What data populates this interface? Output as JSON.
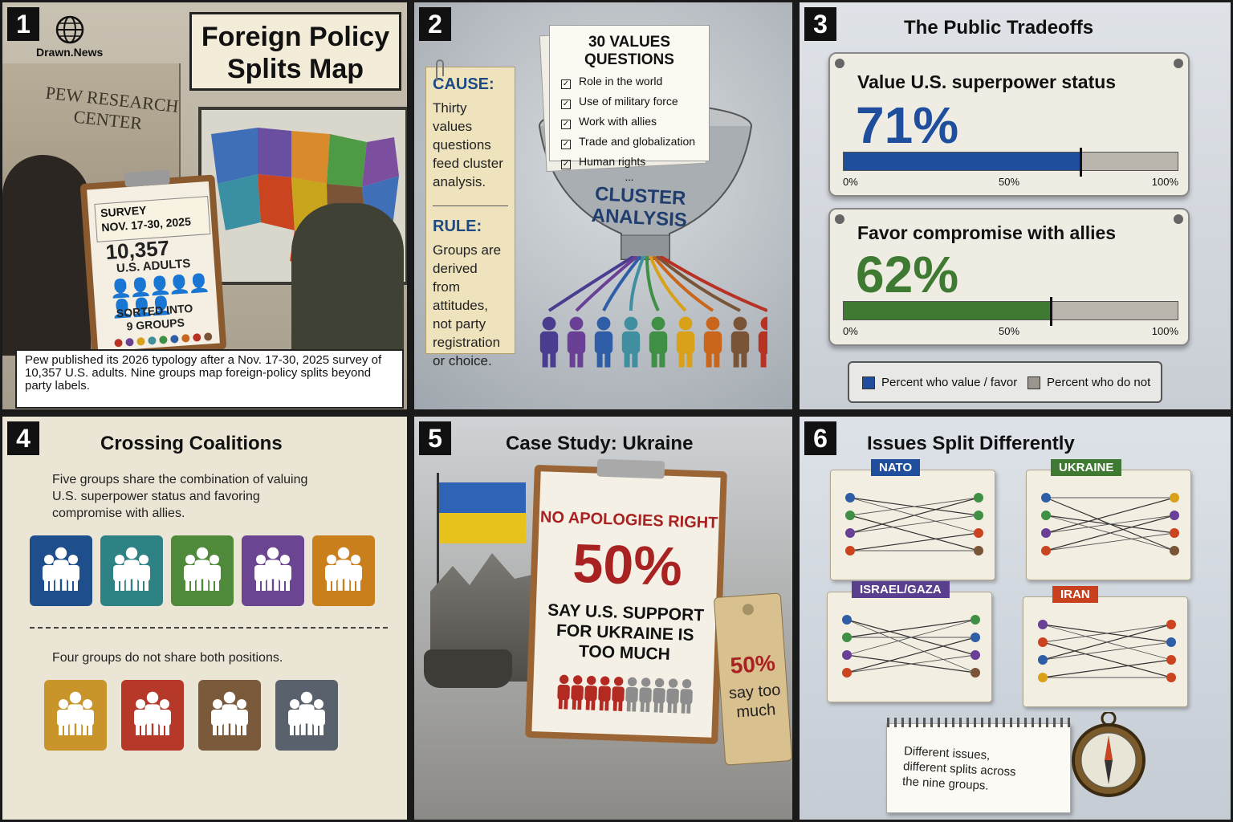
{
  "panels": {
    "p1": {
      "number": "1",
      "brand": "Drawn.News",
      "title_line1": "Foreign Policy",
      "title_line2": "Splits Map",
      "building_sign_line1": "PEW RESEARCH",
      "building_sign_line2": "CENTER",
      "clipboard": {
        "survey": "SURVEY",
        "dates": "NOV. 17-30, 2025",
        "count": "10,357",
        "adults": "U.S. ADULTS",
        "sorted_line1": "SORTED INTO",
        "sorted_line2": "9 GROUPS"
      },
      "caption": "Pew published its 2026 typology after a Nov. 17-30, 2025 survey of 10,357 U.S. adults. Nine groups map foreign-policy splits beyond party labels."
    },
    "p2": {
      "number": "2",
      "cause_heading": "CAUSE:",
      "cause_text": "Thirty values questions feed cluster analysis.",
      "rule_heading": "RULE:",
      "rule_text": "Groups are derived from attitudes, not party registration or choice.",
      "paper_title": "30 VALUES QUESTIONS",
      "questions": [
        "Role in the world",
        "Use of military force",
        "Work with allies",
        "Trade and globalization",
        "Human rights"
      ],
      "ellipsis": "...",
      "funnel_line1": "CLUSTER",
      "funnel_line2": "ANALYSIS",
      "group_colors": [
        "#4a3d8f",
        "#6a3f96",
        "#2f5da6",
        "#3f8fa0",
        "#3f8f45",
        "#d9a019",
        "#c9661c",
        "#7a5436",
        "#b83224"
      ]
    },
    "p3": {
      "number": "3",
      "title": "The Public Tradeoffs",
      "metrics": [
        {
          "label": "Value U.S. superpower status",
          "percent_text": "71%",
          "value": 71,
          "color": "#1f4f9c"
        },
        {
          "label": "Favor compromise with allies",
          "percent_text": "62%",
          "value": 62,
          "color": "#3f7a32"
        }
      ],
      "ticks": [
        "0%",
        "50%",
        "100%"
      ],
      "legend_favor": "Percent who value / favor",
      "legend_not": "Percent who do not",
      "legend_favor_color": "#1f4f9c",
      "legend_not_color": "#9a958d"
    },
    "p4": {
      "number": "4",
      "title": "Crossing Coalitions",
      "share_text": "Five groups share the combination of valuing U.S. superpower status and favoring compromise with allies.",
      "notshare_text": "Four groups do not share both positions.",
      "share_colors": [
        "#1f4e8c",
        "#2e8284",
        "#4f8a3a",
        "#6b4591",
        "#c97f1c"
      ],
      "notshare_colors": [
        "#c9952a",
        "#b63828",
        "#7a5a3a",
        "#59616d"
      ]
    },
    "p5": {
      "number": "5",
      "title": "Case Study: Ukraine",
      "group_name": "NO APOLOGIES RIGHT",
      "percent": "50%",
      "statement_line1": "SAY U.S. SUPPORT",
      "statement_line2": "FOR UKRAINE IS",
      "statement_line3": "TOO MUCH",
      "tag_percent": "50%",
      "tag_line1": "say too",
      "tag_line2": "much",
      "value": 50
    },
    "p6": {
      "number": "6",
      "title": "Issues Split Differently",
      "folders": [
        {
          "name": "NATO",
          "color": "#1f4f9c"
        },
        {
          "name": "UKRAINE",
          "color": "#3f7a32"
        },
        {
          "name": "ISRAEL/GAZA",
          "color": "#5b3f8f"
        },
        {
          "name": "IRAN",
          "color": "#c9401f"
        }
      ],
      "note": "Different issues, different splits across the nine groups."
    }
  }
}
